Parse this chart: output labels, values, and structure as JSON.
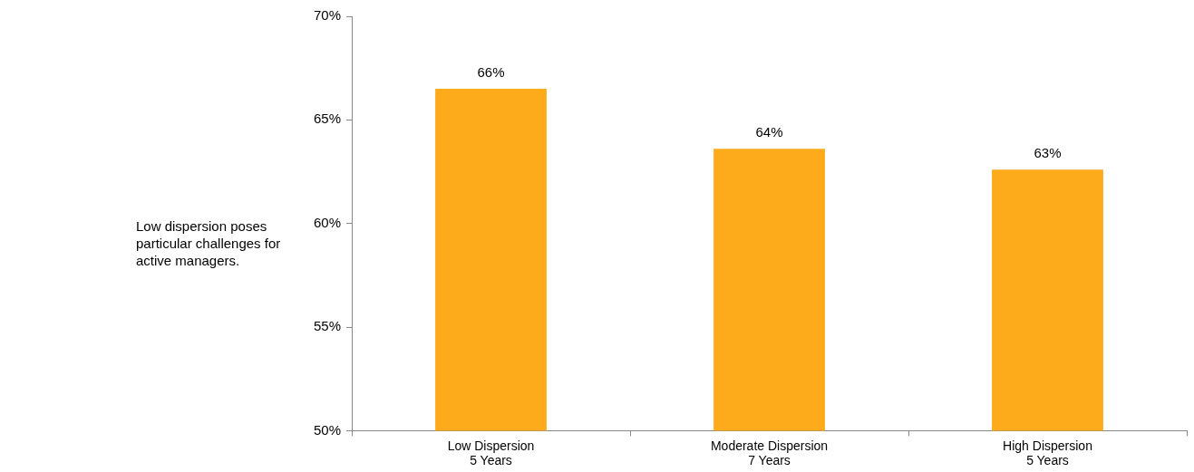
{
  "chart_data": {
    "type": "bar",
    "categories": [
      "Low Dispersion\n5 Years",
      "Moderate Dispersion\n7 Years",
      "High Dispersion\n5 Years"
    ],
    "values": [
      66.5,
      63.6,
      62.6
    ],
    "value_labels": [
      "66%",
      "64%",
      "63%"
    ],
    "color": "#fdaa1b",
    "ylim": [
      50,
      70
    ],
    "yticks": [
      {
        "value": 50,
        "label": "50%"
      },
      {
        "value": 55,
        "label": "55%"
      },
      {
        "value": 60,
        "label": "60%"
      },
      {
        "value": 65,
        "label": "65%"
      },
      {
        "value": 70,
        "label": "70%"
      }
    ],
    "grid": false,
    "legend": false,
    "annotations": [
      "Low dispersion poses particular challenges for active managers."
    ]
  }
}
